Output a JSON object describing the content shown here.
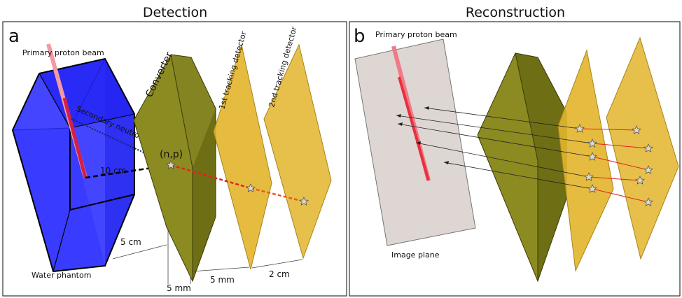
{
  "panels": {
    "left": {
      "title": "Detection",
      "letter": "a",
      "labels": {
        "primary_beam": "Primary proton beam",
        "secondary_neutron": "Secondary neutron",
        "distance_10cm": "10 cm",
        "np": "(n,p)",
        "converter": "Converter",
        "tracking1": "1st tracking detector",
        "tracking2": "2nd tracking detector",
        "water_phantom": "Water phantom",
        "gap_5cm": "5 cm",
        "gap_5mm_a": "5 mm",
        "gap_5mm_b": "5 mm",
        "gap_2cm": "2 cm"
      }
    },
    "right": {
      "title": "Reconstruction",
      "letter": "b",
      "labels": {
        "primary_beam": "Primary proton beam",
        "image_plane": "Image plane"
      }
    }
  },
  "colors": {
    "water": "#2a2cff",
    "converter": "#8a8a20",
    "detector": "#e2b52b",
    "beam": "#e83b4a",
    "image_plane": "#ddd6d3"
  }
}
